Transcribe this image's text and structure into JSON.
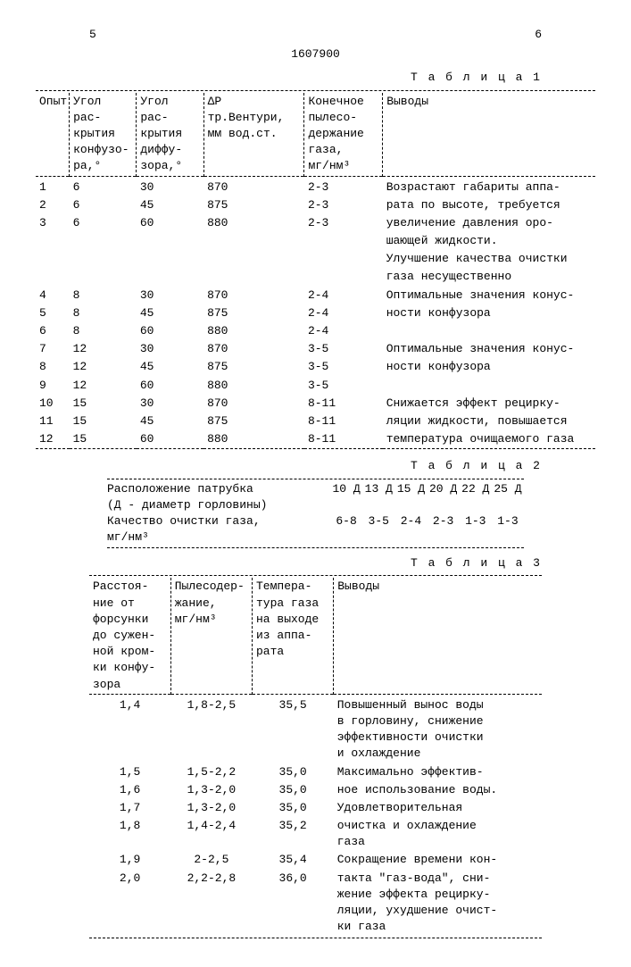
{
  "header": {
    "page_left": "5",
    "page_right": "6",
    "doc_number": "1607900"
  },
  "table1": {
    "caption": "Т а б л и ц а  1",
    "columns": [
      "Опыт",
      "Угол рас-\nкрытия\nконфузо-\nра,°",
      "Угол рас-\nкрытия\nдиффу-\nзора,°",
      "ΔР тр.Вентури,\nмм вод.ст.",
      "Конечное\nпылесо-\nдержание\nгаза,\nмг/нм³",
      "Выводы"
    ],
    "rows": [
      [
        "1",
        "6",
        "30",
        "870",
        "2-3",
        "Возрастают габариты аппа-"
      ],
      [
        "2",
        "6",
        "45",
        "875",
        "2-3",
        "рата по высоте, требуется"
      ],
      [
        "3",
        "6",
        "60",
        "880",
        "2-3",
        "увеличение давления оро-"
      ],
      [
        "",
        "",
        "",
        "",
        "",
        "шающей жидкости."
      ],
      [
        "",
        "",
        "",
        "",
        "",
        "Улучшение качества очистки"
      ],
      [
        "",
        "",
        "",
        "",
        "",
        "газа несущественно"
      ],
      [
        "4",
        "8",
        "30",
        "870",
        "2-4",
        "Оптимальные значения конус-"
      ],
      [
        "5",
        "8",
        "45",
        "875",
        "2-4",
        "ности конфузора"
      ],
      [
        "6",
        "8",
        "60",
        "880",
        "2-4",
        ""
      ],
      [
        "7",
        "12",
        "30",
        "870",
        "3-5",
        "Оптимальные значения конус-"
      ],
      [
        "8",
        "12",
        "45",
        "875",
        "3-5",
        "ности конфузора"
      ],
      [
        "9",
        "12",
        "60",
        "880",
        "3-5",
        ""
      ],
      [
        "10",
        "15",
        "30",
        "870",
        "8-11",
        "Снижается эффект рецирку-"
      ],
      [
        "11",
        "15",
        "45",
        "875",
        "8-11",
        "ляции жидкости, повышается"
      ],
      [
        "12",
        "15",
        "60",
        "880",
        "8-11",
        "температура очищаемого газа"
      ]
    ],
    "col_widths": [
      "6%",
      "12%",
      "12%",
      "18%",
      "14%",
      "38%"
    ]
  },
  "table2": {
    "caption": "Т а б л и ц а  2",
    "rows": [
      {
        "label": "Расположение патрубка\n(Д - диаметр горловины)",
        "cells": [
          "10 Д",
          "13 Д",
          "15 Д",
          "20 Д",
          "22 Д",
          "25 Д"
        ]
      },
      {
        "label": "Качество очистки газа,\nмг/нм³",
        "cells": [
          "6-8",
          "3-5",
          "2-4",
          "2-3",
          "1-3",
          "1-3"
        ]
      }
    ]
  },
  "table3": {
    "caption": "Т а б л и ц а  3",
    "columns": [
      "Расстоя-\nние от\nфорсунки\nдо сужен-\nной кром-\nки конфу-\nзора",
      "Пылесодер-\nжание,\nмг/нм³",
      "Темпера-\nтура газа\nна выходе\nиз аппа-\nрата",
      "Выводы"
    ],
    "rows": [
      [
        "1,4",
        "1,8-2,5",
        "35,5",
        "Повышенный вынос воды\nв горловину, снижение\nэффективности очистки\nи охлаждение"
      ],
      [
        "1,5",
        "1,5-2,2",
        "35,0",
        "Максимально эффектив-"
      ],
      [
        "1,6",
        "1,3-2,0",
        "35,0",
        "ное использование воды."
      ],
      [
        "1,7",
        "1,3-2,0",
        "35,0",
        "Удовлетворительная"
      ],
      [
        "1,8",
        "1,4-2,4",
        "35,2",
        "очистка и охлаждение\nгаза"
      ],
      [
        "1,9",
        "2-2,5",
        "35,4",
        "Сокращение времени кон-"
      ],
      [
        "2,0",
        "2,2-2,8",
        "36,0",
        "такта \"газ-вода\", сни-\nжение эффекта рецирку-\nляции, ухудшение очист-\nки газа"
      ]
    ],
    "col_widths": [
      "18%",
      "18%",
      "18%",
      "46%"
    ]
  }
}
